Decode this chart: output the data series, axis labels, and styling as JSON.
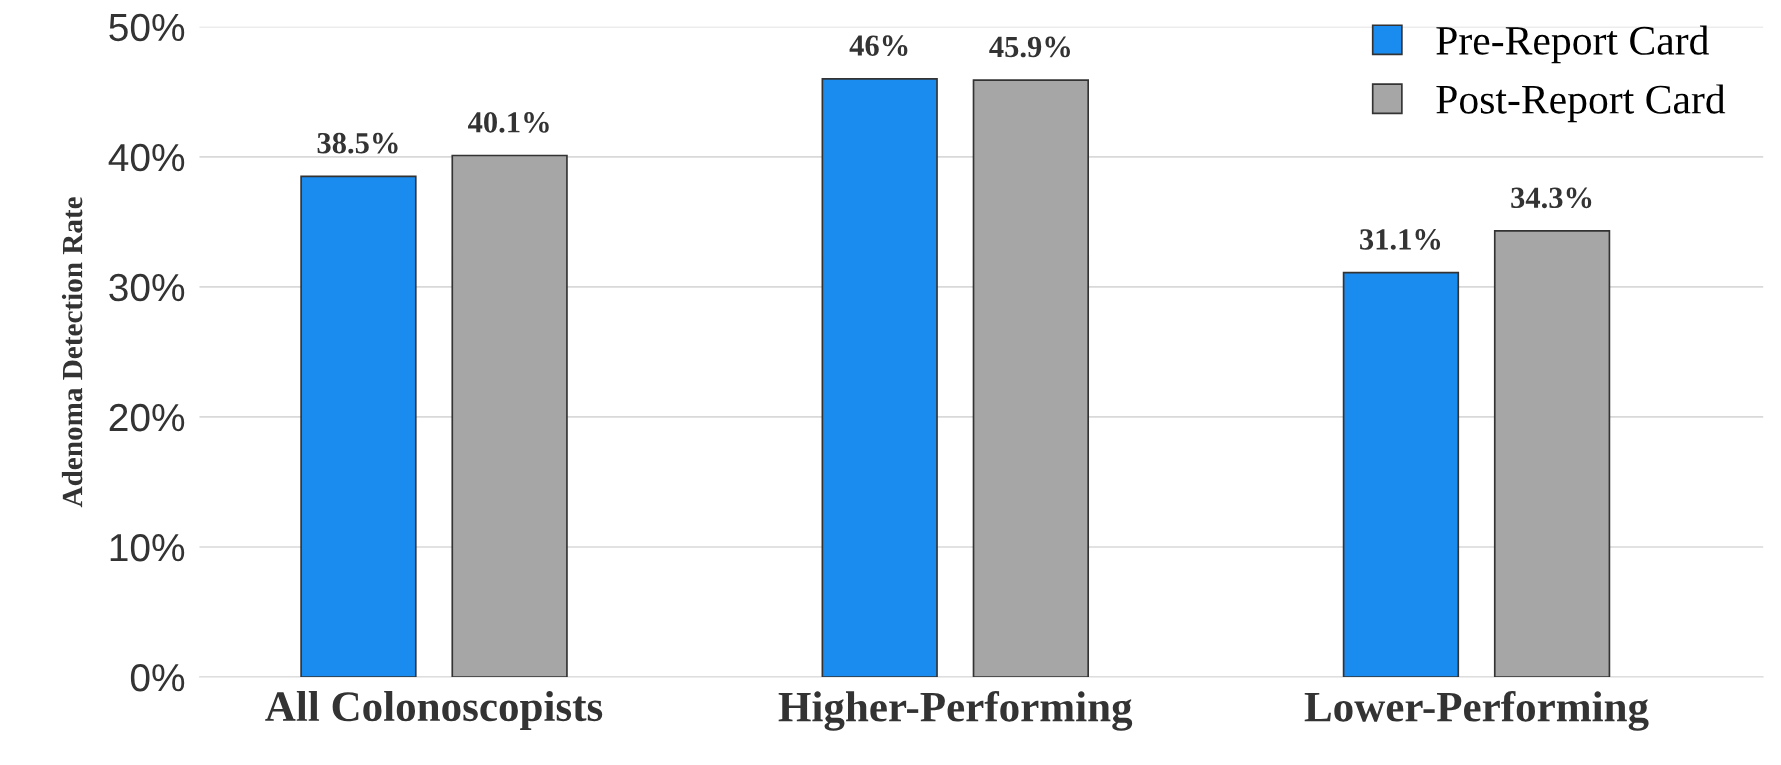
{
  "chart_data": {
    "type": "bar",
    "ylabel": "Adenoma Detection Rate",
    "categories": [
      "All Colonoscopists",
      "Higher-Performing",
      "Lower-Performing"
    ],
    "series": [
      {
        "name": "Pre-Report Card",
        "color": "#1a8cf0",
        "values": [
          38.5,
          46,
          31.1
        ],
        "value_labels": [
          "38.5%",
          "46%",
          "31.1%"
        ]
      },
      {
        "name": "Post-Report Card",
        "color": "#a6a6a6",
        "values": [
          40.1,
          45.9,
          34.3
        ],
        "value_labels": [
          "40.1%",
          "45.9%",
          "34.3%"
        ]
      }
    ],
    "ylim": [
      0,
      50
    ],
    "yticks": [
      {
        "value": 0,
        "label": "0%"
      },
      {
        "value": 10,
        "label": "10%"
      },
      {
        "value": 20,
        "label": "20%"
      },
      {
        "value": 30,
        "label": "30%"
      },
      {
        "value": 40,
        "label": "40%"
      },
      {
        "value": 50,
        "label": "50%"
      }
    ],
    "grid": "y",
    "legend": "top right"
  }
}
